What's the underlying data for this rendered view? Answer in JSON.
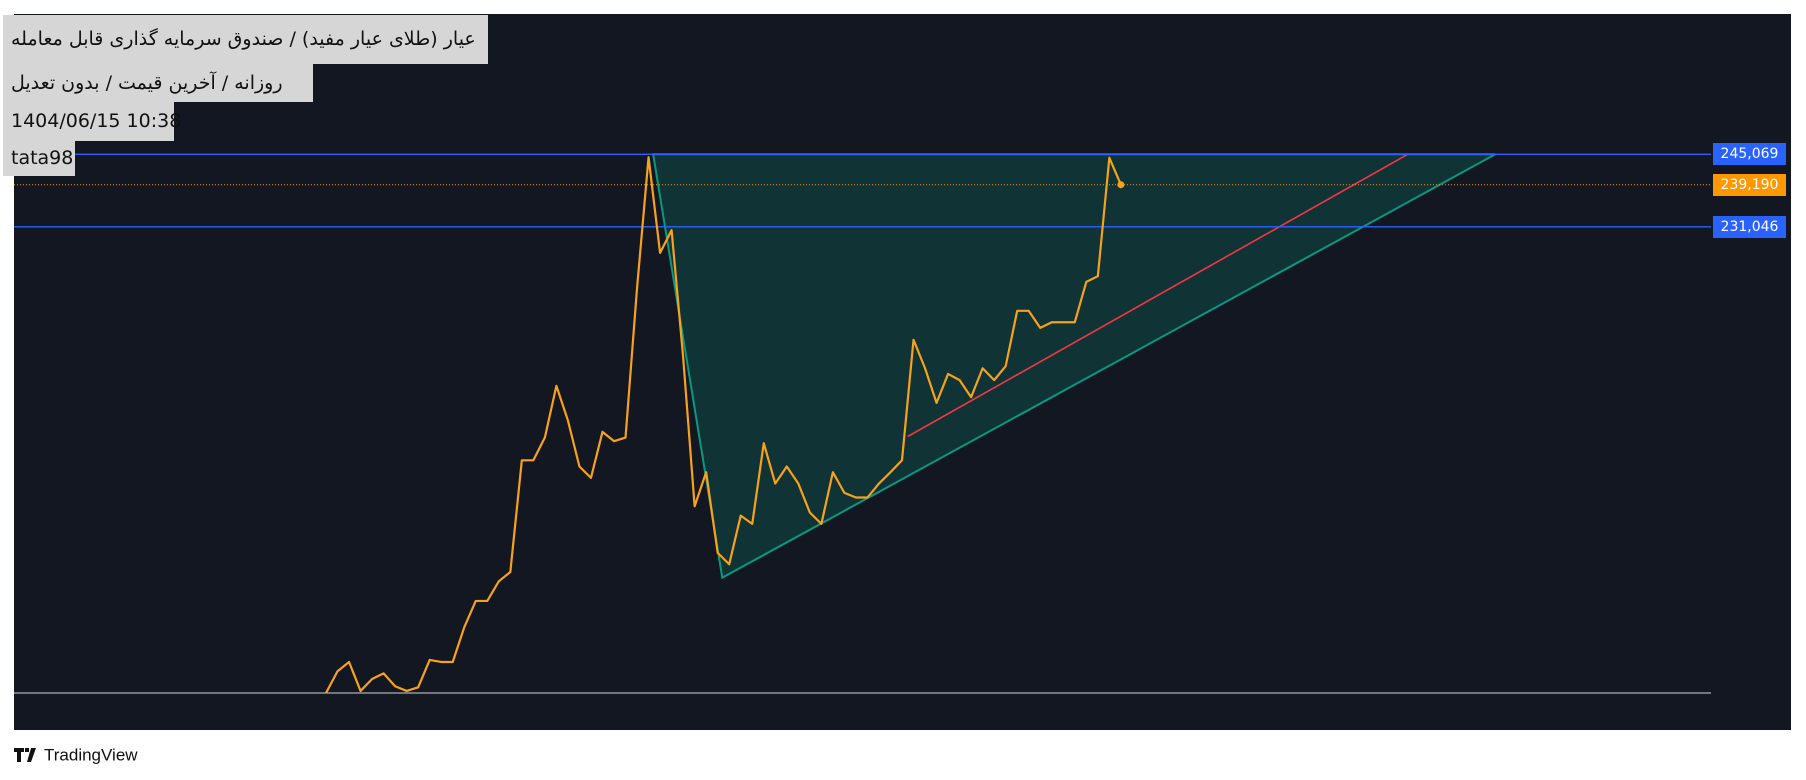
{
  "chart_data": {
    "type": "line",
    "title": "عیار (طلای عیار مفید) / صندوق سرمایه گذاری قابل معامله",
    "subtitle": "روزانه / آخرین قیمت / بدون تعدیل",
    "timestamp": "1404/06/15 10:38",
    "author": "tata98",
    "brand": "TradingView",
    "color": "#f7a21b",
    "categories": [
      null,
      null,
      null,
      null,
      null,
      null,
      null,
      null,
      null,
      null,
      null,
      null,
      null,
      null,
      null,
      null,
      null,
      null,
      null,
      null,
      null,
      null,
      null,
      null,
      null,
      null,
      null,
      null,
      null,
      null,
      null,
      null,
      null,
      null,
      null,
      null,
      null,
      null,
      null,
      null,
      null,
      null,
      null,
      null,
      null,
      null,
      null,
      null,
      null,
      null,
      null,
      null,
      null,
      null,
      null,
      null,
      null,
      null,
      null,
      null,
      null,
      null,
      null,
      null,
      null,
      null,
      null,
      null,
      null,
      null
    ],
    "values": [
      140900,
      145100,
      146900,
      141300,
      143600,
      144700,
      142200,
      141300,
      142000,
      147300,
      146900,
      146900,
      153600,
      158700,
      158700,
      162500,
      164300,
      185900,
      185900,
      190300,
      200300,
      193600,
      184700,
      182500,
      191400,
      189600,
      190300,
      219200,
      244500,
      226000,
      230400,
      205900,
      177000,
      183600,
      168000,
      165800,
      175200,
      173600,
      189200,
      181400,
      184700,
      181400,
      175800,
      173600,
      183600,
      179600,
      178700,
      178700,
      181400,
      183600,
      185900,
      209200,
      203700,
      197000,
      202600,
      201400,
      198100,
      203700,
      201400,
      204100,
      214800,
      214800,
      211500,
      212600,
      212600,
      212600,
      220400,
      221500,
      244400,
      239190
    ],
    "ylim": [
      140900,
      272200
    ],
    "hlines": [
      {
        "value": 245069,
        "label": "245,069",
        "color": "#2962ff",
        "style": "solid"
      },
      {
        "value": 239190,
        "label": "239,190",
        "color": "#ff9800",
        "style": "dotted"
      },
      {
        "value": 231046,
        "label": "231,046",
        "color": "#2962ff",
        "style": "solid"
      }
    ],
    "triangle": {
      "points": [
        [
          28.4,
          245069
        ],
        [
          34.4,
          163200
        ],
        [
          101.5,
          245069
        ]
      ],
      "color": "#089981"
    },
    "trendline": {
      "points": [
        [
          50.5,
          190500
        ],
        [
          93.9,
          245069
        ]
      ],
      "color": "#f23645"
    }
  }
}
